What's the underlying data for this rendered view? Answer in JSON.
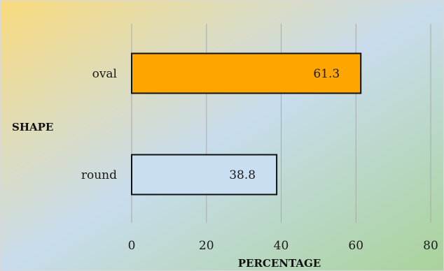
{
  "chart_data": {
    "type": "bar",
    "orientation": "horizontal",
    "title": "",
    "categories": [
      "oval",
      "round"
    ],
    "values": [
      61.3,
      38.8
    ],
    "data_labels": [
      "61.3",
      "38.8"
    ],
    "xlabel": "PERCENTAGE",
    "ylabel": "SHAPE",
    "xlim": [
      0,
      80
    ],
    "xticks": [
      0,
      20,
      40,
      60,
      80
    ],
    "xtick_labels": [
      "0",
      "20",
      "40",
      "60",
      "80"
    ],
    "grid": "vertical",
    "legend": "none",
    "colors": {
      "bars": [
        "#FFA500",
        "#C9DFF1"
      ],
      "bar_border": "#111111",
      "gridline": "#a9a9a9",
      "background_gradient": [
        "#F9DB7E",
        "#C8DCEC",
        "#A9D39A"
      ]
    }
  }
}
